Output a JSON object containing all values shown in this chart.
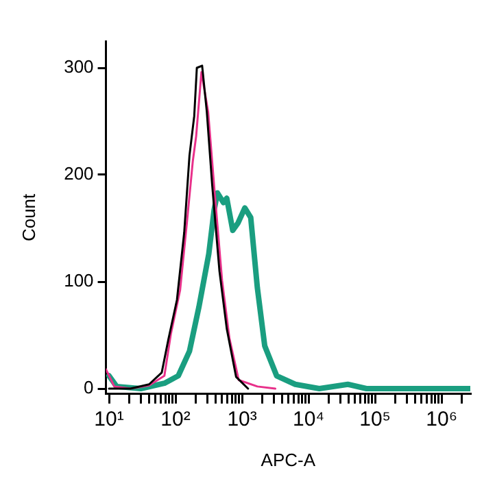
{
  "chart_data": {
    "type": "line",
    "xlabel": "APC-A",
    "ylabel": "Count",
    "log": "x",
    "grid": false,
    "legend": false,
    "marker": "none",
    "line_style": "solid",
    "xlim": [
      9,
      2700000
    ],
    "ylim": [
      -5,
      325
    ],
    "yticks": [
      0,
      100,
      200,
      300
    ],
    "xticks": [
      {
        "value": 10,
        "label": "10¹"
      },
      {
        "value": 20,
        "label": null
      },
      {
        "value": 30,
        "label": null
      },
      {
        "value": 40,
        "label": null
      },
      {
        "value": 50,
        "label": null
      },
      {
        "value": 60,
        "label": null
      },
      {
        "value": 70,
        "label": null
      },
      {
        "value": 80,
        "label": null
      },
      {
        "value": 90,
        "label": null
      },
      {
        "value": 100,
        "label": "10²"
      },
      {
        "value": 200,
        "label": null
      },
      {
        "value": 300,
        "label": null
      },
      {
        "value": 400,
        "label": null
      },
      {
        "value": 500,
        "label": null
      },
      {
        "value": 600,
        "label": null
      },
      {
        "value": 700,
        "label": null
      },
      {
        "value": 800,
        "label": null
      },
      {
        "value": 900,
        "label": null
      },
      {
        "value": 1000,
        "label": "10³"
      },
      {
        "value": 2000,
        "label": null
      },
      {
        "value": 3000,
        "label": null
      },
      {
        "value": 4000,
        "label": null
      },
      {
        "value": 5000,
        "label": null
      },
      {
        "value": 6000,
        "label": null
      },
      {
        "value": 7000,
        "label": null
      },
      {
        "value": 8000,
        "label": null
      },
      {
        "value": 9000,
        "label": null
      },
      {
        "value": 10000,
        "label": "10⁴"
      },
      {
        "value": 20000,
        "label": null
      },
      {
        "value": 30000,
        "label": null
      },
      {
        "value": 40000,
        "label": null
      },
      {
        "value": 50000,
        "label": null
      },
      {
        "value": 60000,
        "label": null
      },
      {
        "value": 70000,
        "label": null
      },
      {
        "value": 80000,
        "label": null
      },
      {
        "value": 90000,
        "label": null
      },
      {
        "value": 100000,
        "label": "10⁵"
      },
      {
        "value": 200000,
        "label": null
      },
      {
        "value": 300000,
        "label": null
      },
      {
        "value": 400000,
        "label": null
      },
      {
        "value": 500000,
        "label": null
      },
      {
        "value": 600000,
        "label": null
      },
      {
        "value": 700000,
        "label": null
      },
      {
        "value": 800000,
        "label": null
      },
      {
        "value": 900000,
        "label": null
      },
      {
        "value": 1000000,
        "label": "10⁶"
      },
      {
        "value": 2000000,
        "label": null
      }
    ],
    "series": [
      {
        "color": "#1a9e80",
        "x": [
          10,
          13,
          30,
          68,
          110,
          162,
          224,
          316,
          380,
          427,
          525,
          589,
          724,
          871,
          1100,
          1350,
          1700,
          2190,
          3310,
          6310,
          14500,
          38900,
          74100,
          2690000
        ],
        "values": [
          12,
          2,
          0,
          5,
          12,
          35,
          76,
          126,
          167,
          183,
          174,
          178,
          148,
          155,
          169,
          160,
          94,
          40,
          12,
          4,
          0,
          4,
          0,
          0
        ]
      },
      {
        "color": "#e8308a",
        "x": [
          9,
          12,
          21,
          40,
          68,
          85,
          117,
          148,
          182,
          204,
          245,
          309,
          389,
          501,
          646,
          891,
          1700,
          3160
        ],
        "values": [
          18,
          2,
          0,
          3,
          12,
          51,
          92,
          155,
          213,
          236,
          296,
          259,
          182,
          101,
          47,
          8,
          2,
          0
        ]
      },
      {
        "color": "#000000",
        "x": [
          10,
          21,
          40,
          62,
          78,
          105,
          135,
          162,
          191,
          209,
          251,
          295,
          355,
          457,
          589,
          813,
          1230
        ],
        "values": [
          0,
          0,
          4,
          15,
          46,
          83,
          146,
          218,
          255,
          300,
          302,
          259,
          191,
          110,
          56,
          11,
          0
        ]
      }
    ]
  }
}
